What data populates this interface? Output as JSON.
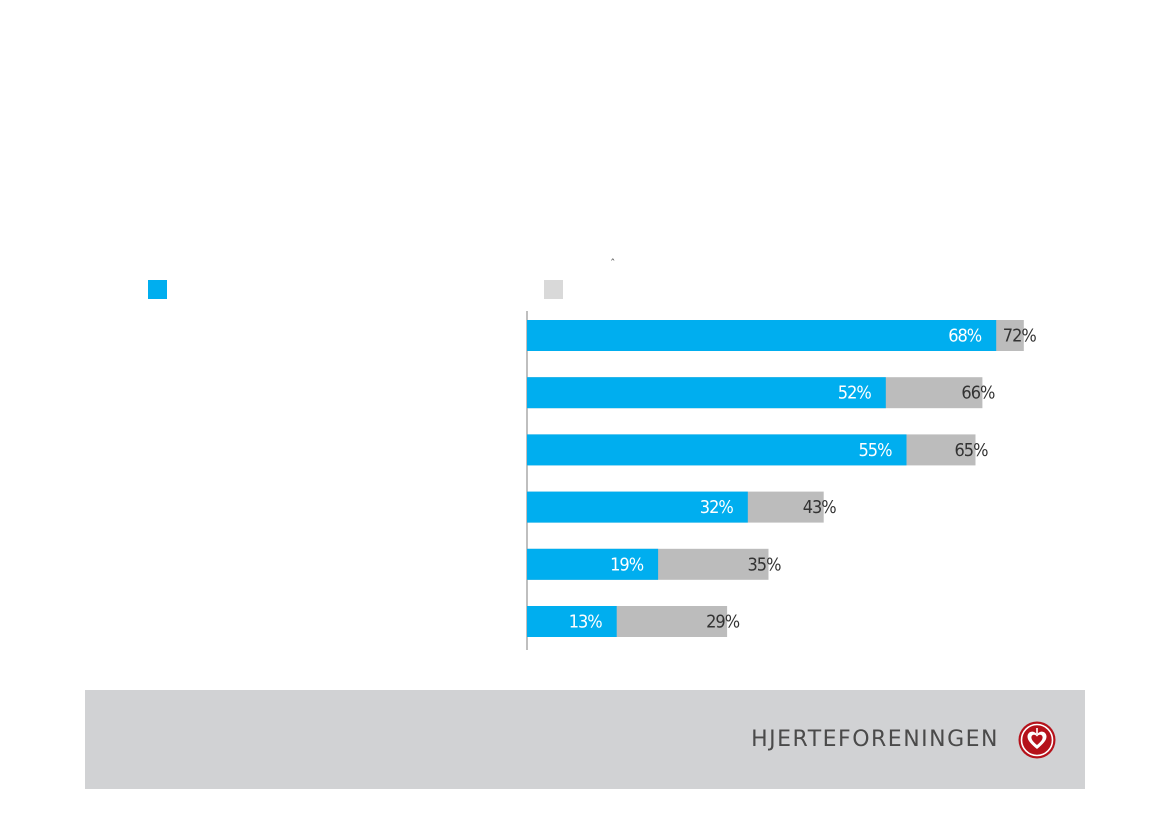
{
  "colors": {
    "series_a": "#00aeef",
    "series_b": "#bcbcbc",
    "legend_b_swatch": "#d9d9d9",
    "axis": "#7f7f7f",
    "footer_bg": "#d1d2d4",
    "logo": "#b5121b"
  },
  "stray_mark": "ˆ",
  "chart_data": {
    "type": "bar",
    "orientation": "horizontal",
    "layout": "overlapping",
    "categories": [
      "",
      "",
      "",
      "",
      "",
      ""
    ],
    "series": [
      {
        "values": [
          68,
          52,
          55,
          32,
          19,
          13
        ],
        "labels": [
          "68%",
          "52%",
          "55%",
          "32%",
          "19%",
          "13%"
        ]
      },
      {
        "values": [
          72,
          66,
          65,
          43,
          35,
          29
        ],
        "labels": [
          "72%",
          "66%",
          "65%",
          "43%",
          "35%",
          "29%"
        ]
      }
    ],
    "title": "",
    "xlabel": "",
    "ylabel": "",
    "xlim": [
      0,
      100
    ],
    "legend": "top",
    "grid": false
  },
  "footer": {
    "brand_name": "HJERTEFORENINGEN",
    "logo_icon": "heart-seal-icon"
  }
}
